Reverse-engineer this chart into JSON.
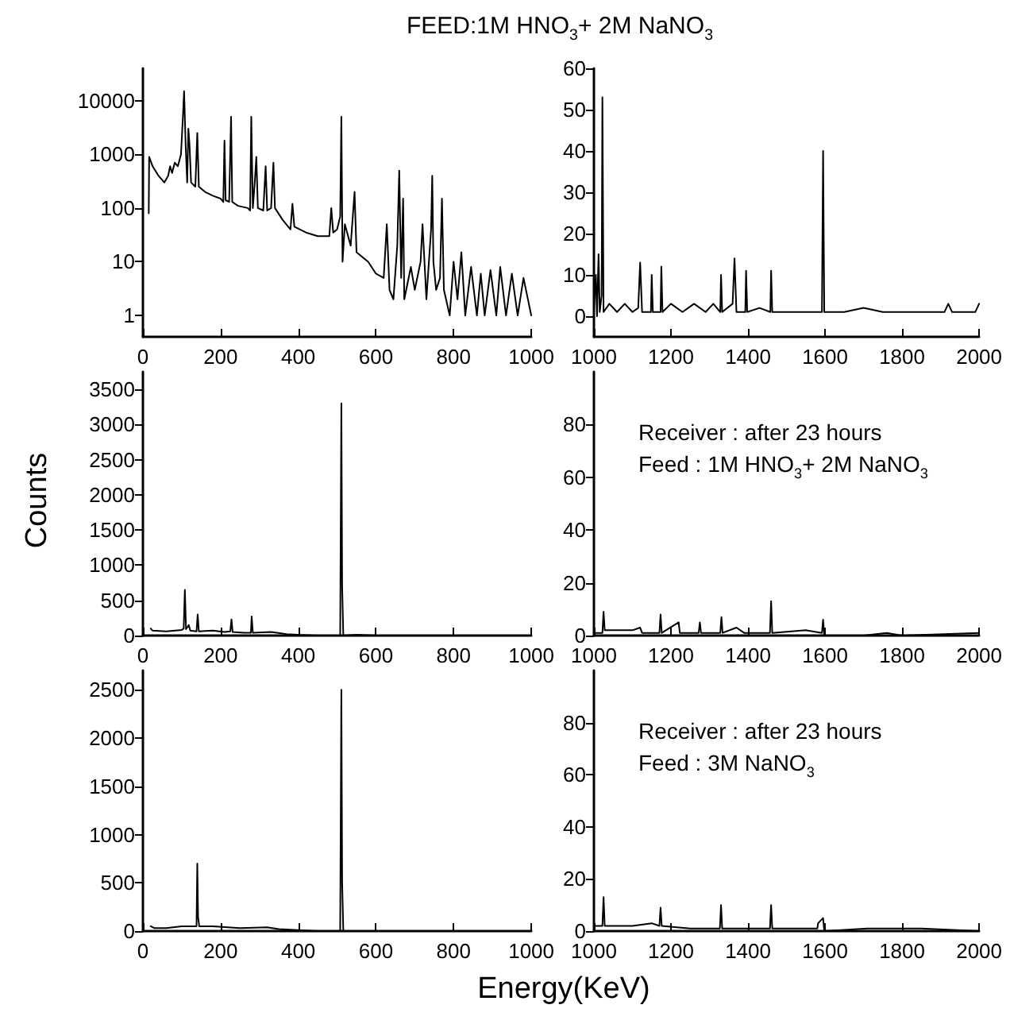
{
  "chart_data": [
    {
      "type": "line",
      "title": "FEED:1M HNO$_{3}$+ 2M NaNO$_{3}$",
      "color": "#000000",
      "line_style": "solid",
      "marker": "none",
      "log": "y",
      "xlim": [
        0,
        1000
      ],
      "xticks": [
        0,
        200,
        400,
        600,
        800,
        1000
      ],
      "ylim": [
        0.4,
        40000
      ],
      "yticks": [
        1,
        10,
        100,
        1000,
        10000
      ],
      "x": [
        15,
        16,
        25,
        40,
        55,
        65,
        70,
        75,
        82,
        90,
        98,
        103,
        106,
        110,
        114,
        117,
        120,
        124,
        135,
        140,
        144,
        160,
        180,
        200,
        207,
        210,
        213,
        222,
        227,
        230,
        245,
        270,
        276,
        279,
        283,
        288,
        292,
        296,
        310,
        316,
        320,
        330,
        336,
        340,
        360,
        380,
        385,
        390,
        420,
        450,
        480,
        485,
        490,
        500,
        508,
        511,
        514,
        520,
        535,
        545,
        550,
        580,
        600,
        620,
        628,
        635,
        645,
        655,
        660,
        665,
        670,
        673,
        690,
        700,
        715,
        720,
        730,
        742,
        745,
        748,
        755,
        765,
        770,
        775,
        790,
        800,
        810,
        820,
        830,
        845,
        860,
        870,
        880,
        895,
        910,
        920,
        935,
        950,
        965,
        980,
        1000
      ],
      "values": [
        80,
        900,
        600,
        400,
        300,
        400,
        600,
        450,
        700,
        600,
        1000,
        5000,
        15000,
        1500,
        300,
        3000,
        1500,
        300,
        250,
        2500,
        250,
        200,
        170,
        150,
        130,
        1800,
        140,
        130,
        5000,
        130,
        110,
        100,
        90,
        5000,
        100,
        300,
        900,
        100,
        90,
        600,
        90,
        100,
        700,
        100,
        60,
        40,
        120,
        45,
        35,
        30,
        30,
        100,
        35,
        40,
        70,
        5000,
        10,
        50,
        20,
        200,
        15,
        10,
        6,
        5,
        50,
        3,
        2,
        20,
        500,
        5,
        150,
        2,
        8,
        3,
        10,
        50,
        2,
        40,
        400,
        10,
        3,
        5,
        150,
        3,
        1,
        10,
        2,
        15,
        1,
        8,
        1,
        6,
        1,
        7,
        1,
        8,
        1,
        6,
        1,
        5,
        1
      ]
    },
    {
      "type": "line",
      "color": "#000000",
      "line_style": "solid",
      "marker": "none",
      "xlim": [
        1000,
        2000
      ],
      "xticks": [
        1000,
        1200,
        1400,
        1600,
        1800,
        2000
      ],
      "ylim": [
        -5,
        60
      ],
      "yticks": [
        0,
        10,
        20,
        30,
        40,
        50,
        60
      ],
      "x": [
        1000,
        1005,
        1008,
        1012,
        1015,
        1020,
        1022,
        1025,
        1040,
        1060,
        1080,
        1100,
        1115,
        1120,
        1125,
        1148,
        1150,
        1153,
        1173,
        1175,
        1178,
        1200,
        1230,
        1260,
        1290,
        1310,
        1328,
        1330,
        1333,
        1360,
        1365,
        1370,
        1393,
        1395,
        1398,
        1430,
        1458,
        1460,
        1463,
        1500,
        1550,
        1592,
        1595,
        1598,
        1650,
        1700,
        1750,
        1800,
        1850,
        1910,
        1920,
        1930,
        1990,
        2000
      ],
      "values": [
        2,
        10,
        0,
        15,
        1,
        5,
        53,
        1,
        3,
        1,
        3,
        1,
        2,
        13,
        1,
        1,
        10,
        1,
        1,
        12,
        1,
        3,
        1,
        3,
        1,
        3,
        1,
        10,
        1,
        3,
        14,
        1,
        1,
        11,
        1,
        2,
        1,
        11,
        1,
        1,
        1,
        1,
        40,
        1,
        1,
        2,
        1,
        1,
        1,
        1,
        3,
        1,
        1,
        3
      ]
    },
    {
      "type": "line",
      "ylabel": "Counts",
      "color": "#000000",
      "line_style": "solid",
      "marker": "none",
      "xlim": [
        0,
        1000
      ],
      "xticks": [
        0,
        200,
        400,
        600,
        800,
        1000
      ],
      "ylim": [
        0,
        3750
      ],
      "yticks": [
        0,
        500,
        1000,
        1500,
        2000,
        2500,
        3000,
        3500
      ],
      "x": [
        20,
        25,
        60,
        100,
        105,
        108,
        111,
        118,
        122,
        138,
        141,
        144,
        180,
        210,
        225,
        228,
        231,
        260,
        278,
        280,
        283,
        330,
        345,
        370,
        400,
        450,
        508,
        511,
        513,
        516,
        550,
        600,
        700,
        1000
      ],
      "values": [
        100,
        70,
        60,
        80,
        100,
        650,
        90,
        150,
        70,
        60,
        300,
        60,
        70,
        50,
        60,
        230,
        50,
        40,
        40,
        270,
        40,
        50,
        40,
        20,
        10,
        0,
        0,
        3300,
        700,
        0,
        10,
        0,
        0,
        0
      ]
    },
    {
      "type": "line",
      "annotations": [
        "Receiver : after 23 hours",
        "Feed : 1M HNO$_{3}$+ 2M NaNO$_{3}$"
      ],
      "color": "#000000",
      "line_style": "solid",
      "marker": "none",
      "xlim": [
        1000,
        2000
      ],
      "xticks": [
        1000,
        1200,
        1400,
        1600,
        1800,
        2000
      ],
      "ylim": [
        0,
        100
      ],
      "yticks": [
        0,
        20,
        40,
        60,
        80
      ],
      "x": [
        1000,
        1022,
        1025,
        1028,
        1100,
        1120,
        1125,
        1170,
        1173,
        1176,
        1220,
        1223,
        1272,
        1275,
        1278,
        1328,
        1331,
        1334,
        1370,
        1390,
        1457,
        1460,
        1463,
        1550,
        1592,
        1595,
        1598,
        1700,
        1760,
        1800,
        2000
      ],
      "values": [
        1,
        1,
        9,
        2,
        2,
        3,
        1,
        1,
        8,
        1,
        5,
        1,
        1,
        5,
        1,
        1,
        7,
        1,
        3,
        1,
        1,
        13,
        1,
        2,
        1,
        6,
        0,
        0,
        1,
        0,
        1
      ]
    },
    {
      "type": "line",
      "xlabel": "Energy(KeV)",
      "color": "#000000",
      "line_style": "solid",
      "marker": "none",
      "xlim": [
        0,
        1000
      ],
      "xticks": [
        0,
        200,
        400,
        600,
        800,
        1000
      ],
      "ylim": [
        0,
        2700
      ],
      "yticks": [
        0,
        500,
        1000,
        1500,
        2000,
        2500
      ],
      "x": [
        20,
        30,
        60,
        100,
        138,
        140,
        142,
        145,
        180,
        250,
        320,
        350,
        400,
        450,
        508,
        511,
        513,
        516,
        1000
      ],
      "values": [
        50,
        30,
        30,
        50,
        50,
        700,
        150,
        50,
        50,
        30,
        40,
        20,
        10,
        0,
        0,
        2500,
        500,
        0,
        0
      ]
    },
    {
      "type": "line",
      "annotations": [
        "Receiver : after 23 hours",
        "Feed : 3M NaNO$_{3}$"
      ],
      "color": "#000000",
      "line_style": "solid",
      "marker": "none",
      "xlim": [
        1000,
        2000
      ],
      "xticks": [
        1000,
        1200,
        1400,
        1600,
        1800,
        2000
      ],
      "ylim": [
        0,
        100
      ],
      "yticks": [
        0,
        20,
        40,
        60,
        80
      ],
      "x": [
        1000,
        1022,
        1025,
        1028,
        1100,
        1150,
        1170,
        1173,
        1176,
        1250,
        1327,
        1330,
        1333,
        1400,
        1457,
        1460,
        1463,
        1580,
        1582,
        1595,
        1598,
        1710,
        1810,
        1850,
        2000
      ],
      "values": [
        2,
        2,
        13,
        2,
        2,
        3,
        2,
        9,
        2,
        1,
        1,
        10,
        1,
        1,
        1,
        10,
        1,
        1,
        3,
        5,
        0,
        1,
        1,
        1,
        0
      ]
    }
  ]
}
